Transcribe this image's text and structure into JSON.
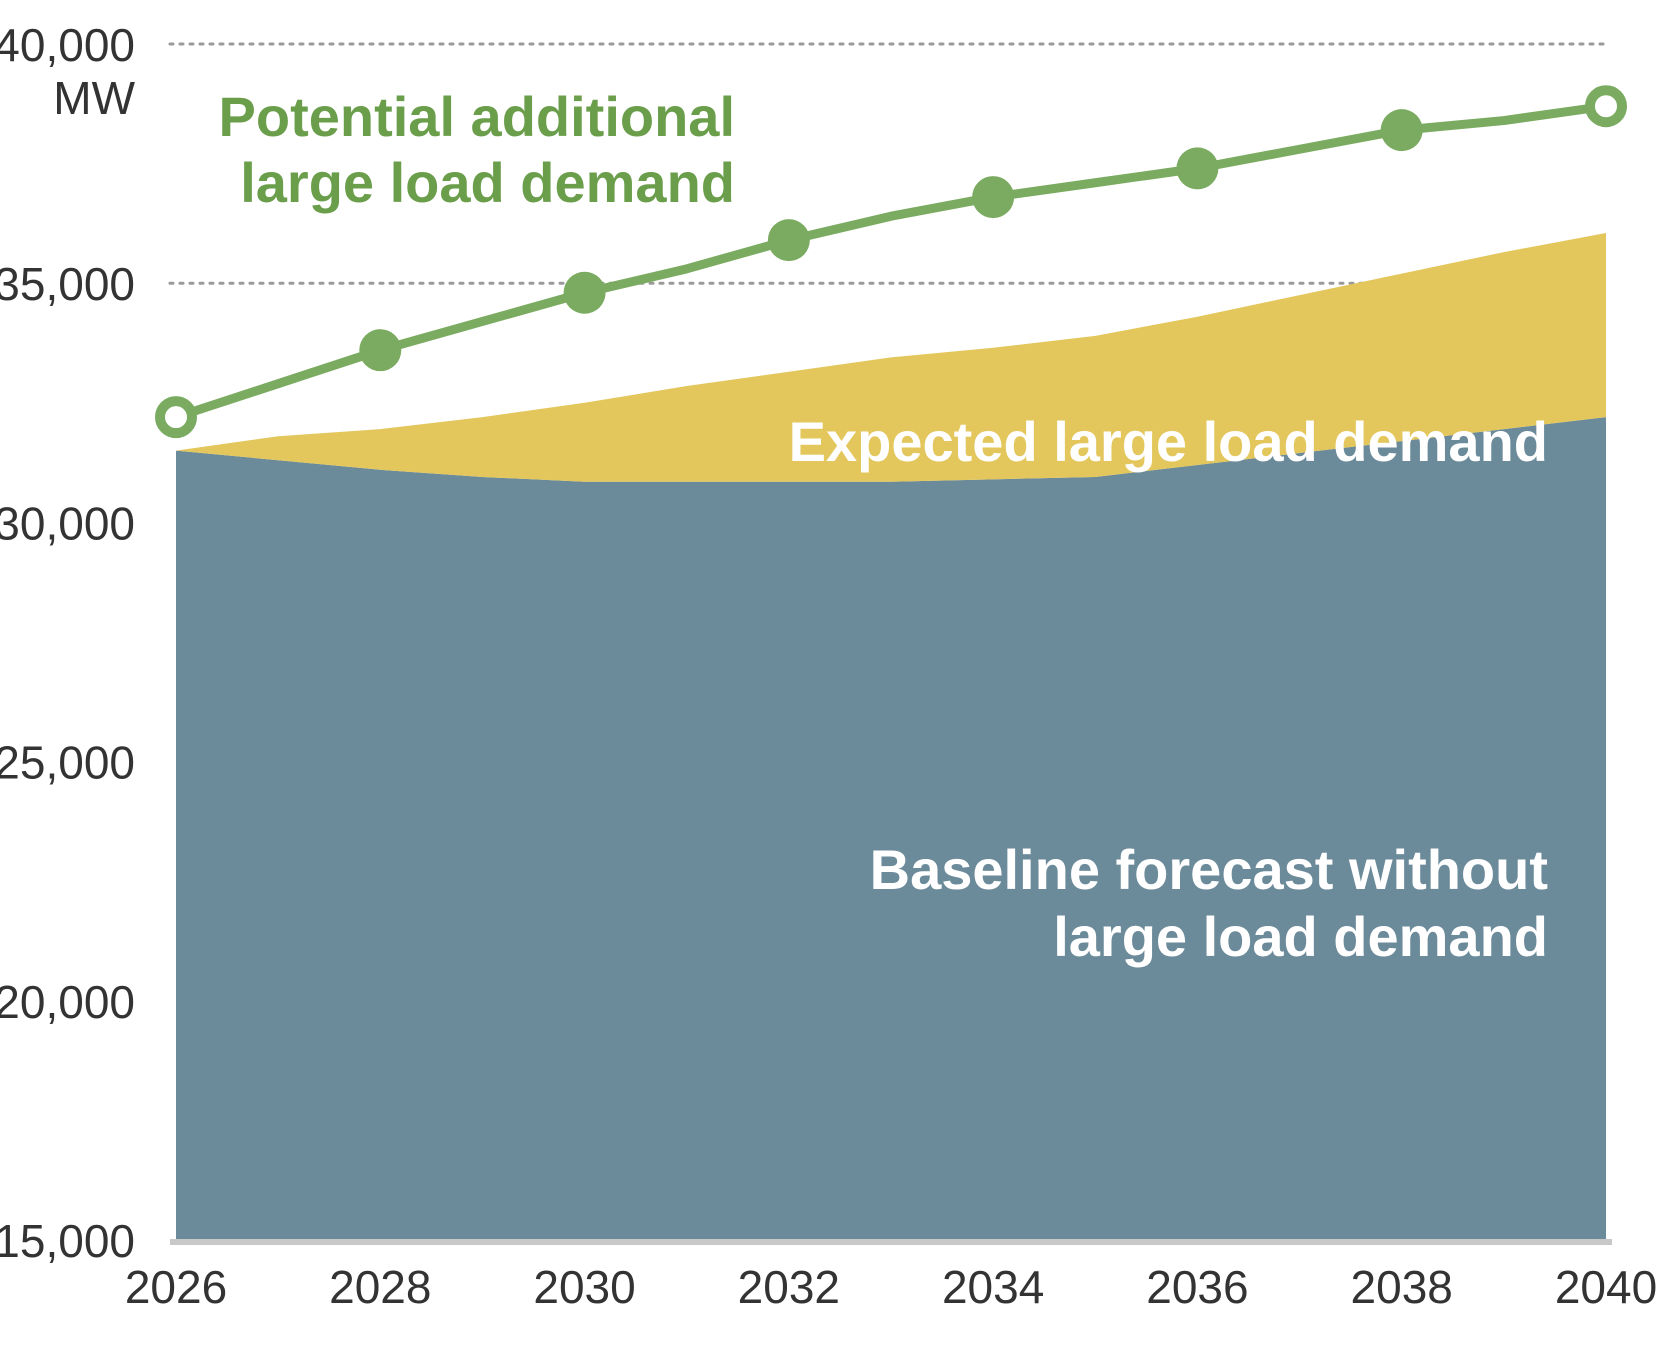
{
  "chart_data": {
    "type": "area",
    "unit": "MW",
    "x": [
      2026,
      2027,
      2028,
      2029,
      2030,
      2031,
      2032,
      2033,
      2034,
      2035,
      2036,
      2037,
      2038,
      2039,
      2040
    ],
    "xticks": [
      "2026",
      "2028",
      "2030",
      "2032",
      "2034",
      "2036",
      "2038",
      "2040"
    ],
    "yticks": [
      "15,000",
      "20,000",
      "25,000",
      "30,000",
      "35,000",
      "40,000"
    ],
    "ylim": [
      15000,
      40000
    ],
    "grid": {
      "horizontal_dotted_at": [
        35000,
        40000
      ]
    },
    "series": [
      {
        "name": "Baseline forecast without large load demand",
        "label_lines": [
          "Baseline forecast without",
          "large load demand"
        ],
        "kind": "stacked-area",
        "color": "#6b8a9a",
        "values": [
          31500,
          31300,
          31100,
          30950,
          30850,
          30850,
          30850,
          30850,
          30900,
          30950,
          31200,
          31450,
          31700,
          31950,
          32200
        ]
      },
      {
        "name": "Expected large load demand",
        "label_lines": [
          "Expected large load demand"
        ],
        "kind": "stacked-area",
        "color": "#e3c75c",
        "values": [
          0,
          500,
          850,
          1250,
          1650,
          2000,
          2300,
          2600,
          2750,
          2950,
          3100,
          3300,
          3500,
          3700,
          3850
        ]
      },
      {
        "name": "Potential additional large load demand",
        "label_lines": [
          "Potential additional",
          "large load demand"
        ],
        "kind": "line",
        "color": "#7aab60",
        "values": [
          32200,
          32900,
          33600,
          34200,
          34800,
          35300,
          35900,
          36400,
          36800,
          37100,
          37400,
          37800,
          38200,
          38400,
          38700
        ],
        "markers_at": [
          2026,
          2028,
          2030,
          2032,
          2034,
          2036,
          2038,
          2040
        ],
        "hollow_markers_at": [
          2026,
          2040
        ]
      }
    ]
  }
}
